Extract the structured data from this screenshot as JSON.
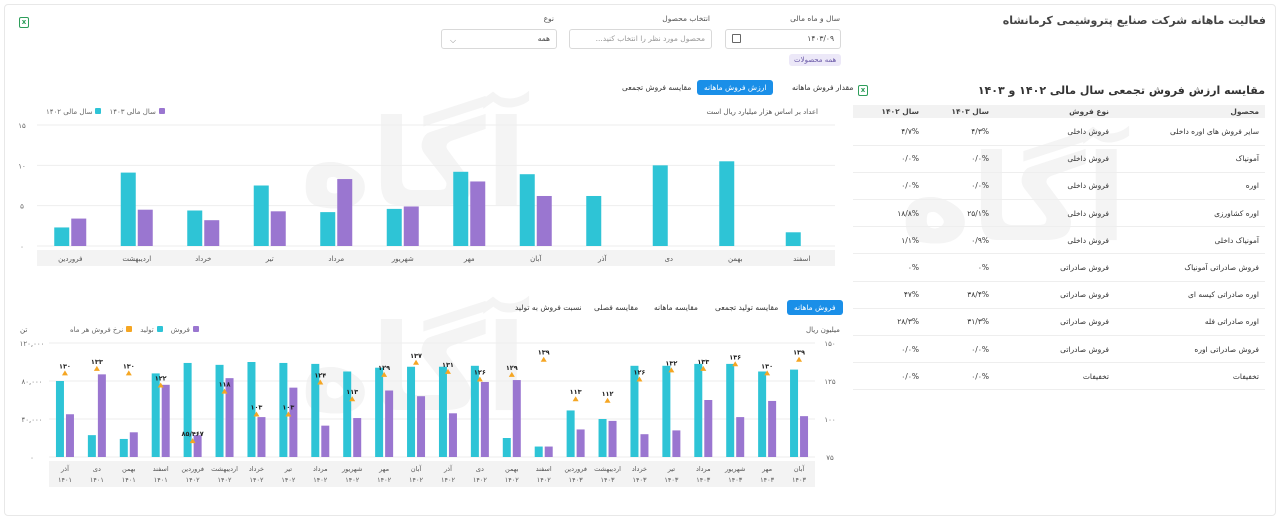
{
  "page_title": "فعالیت ماهانه شرکت صنایع پتروشیمی کرمانشاه",
  "export_icon": "excel-export-icon",
  "watermark_text": "آگاه",
  "filters": {
    "period_label": "سال و ماه مالی",
    "period_value": "۱۴۰۳/۰۹",
    "product_label": "انتخاب محصول",
    "product_placeholder": "محصول مورد نظر را انتخاب کنید...",
    "type_label": "نوع",
    "type_value": "همه",
    "all_products_tag": "همه محصولات"
  },
  "top_tabs": [
    "مقدار فروش ماهانه",
    "ارزش فروش ماهانه",
    "مقایسه فروش تجمعی"
  ],
  "top_tab_active": 1,
  "bottom_tabs": [
    "فروش ماهانه",
    "مقایسه تولید تجمعی",
    "مقایسه ماهانه",
    "مقایسه فصلی",
    "نسبت فروش به تولید"
  ],
  "bottom_tab_active": 0,
  "table_section": {
    "title": "مقایسه ارزش فروش تجمعی سال مالی ۱۴۰۲ و ۱۴۰۳",
    "headers": [
      "محصول",
      "نوع فروش",
      "سال ۱۴۰۳",
      "سال ۱۴۰۲"
    ],
    "rows": [
      [
        "سایر فروش های اوره داخلی",
        "فروش داخلی",
        "۴/۳%",
        "۴/۷%"
      ],
      [
        "آمونیاک",
        "فروش داخلی",
        "۰/۰%",
        "۰/۰%"
      ],
      [
        "اوره",
        "فروش داخلی",
        "۰/۰%",
        "۰/۰%"
      ],
      [
        "اوره کشاورزی",
        "فروش داخلی",
        "۲۵/۱%",
        "۱۸/۸%"
      ],
      [
        "آمونیاک داخلی",
        "فروش داخلی",
        "۰/۹%",
        "۱/۱%"
      ],
      [
        "فروش صادراتی آمونیاک",
        "فروش صادراتی",
        "۰%",
        "۰%"
      ],
      [
        "اوره صادراتی کیسه ای",
        "فروش صادراتی",
        "۳۸/۴%",
        "۴۷%"
      ],
      [
        "اوره صادراتی فله",
        "فروش صادراتی",
        "۳۱/۳%",
        "۲۸/۳%"
      ],
      [
        "فروش صادراتی اوره",
        "فروش صادراتی",
        "۰/۰%",
        "۰/۰%"
      ],
      [
        "تخفیفات",
        "تخفیفات",
        "۰/۰%",
        "۰/۰%"
      ]
    ]
  },
  "chart_top_note": "اعداد بر اساس هزار میلیارد ریال است",
  "colors": {
    "teal": "#2ec4d6",
    "purple": "#9a76d0",
    "orange": "#f5a623",
    "accent": "#1a8fe8"
  },
  "chart_data": [
    {
      "type": "bar",
      "legend": [
        {
          "name": "سال مالی ۱۴۰۳",
          "color": "#9a76d0"
        },
        {
          "name": "سال مالی ۱۴۰۲",
          "color": "#2ec4d6"
        }
      ],
      "categories": [
        "اسفند",
        "بهمن",
        "دی",
        "آذر",
        "آبان",
        "مهر",
        "شهریور",
        "مرداد",
        "تیر",
        "خرداد",
        "اردیبهشت",
        "فروردین"
      ],
      "series": [
        {
          "name": "سال مالی ۱۴۰۲",
          "values": [
            1.7,
            10.5,
            10,
            6.2,
            8.9,
            9.2,
            4.6,
            4.2,
            7.5,
            4.4,
            9.1,
            2.3
          ]
        },
        {
          "name": "سال مالی ۱۴۰۳",
          "values": [
            null,
            null,
            null,
            null,
            6.2,
            8,
            4.9,
            8.3,
            4.3,
            3.2,
            4.5,
            3.4
          ]
        }
      ],
      "y_ticks": [
        "۰",
        "۵",
        "۱۰",
        "۱۵"
      ],
      "ylim": [
        0,
        15
      ]
    },
    {
      "type": "bar",
      "legend": [
        {
          "name": "فروش",
          "color": "#9a76d0"
        },
        {
          "name": "تولید",
          "color": "#2ec4d6"
        },
        {
          "name": "نرخ فروش هر ماه",
          "color": "#f5a623"
        }
      ],
      "left_unit": "تن",
      "right_unit": "میلیون ریال",
      "left_ticks": [
        "۰",
        "۴۰,۰۰۰",
        "۸۰,۰۰۰",
        "۱۲۰,۰۰۰"
      ],
      "right_ticks": [
        "۷۵",
        "۱۰۰",
        "۱۲۵",
        "۱۵۰"
      ],
      "categories": [
        [
          "آذر",
          "۱۴۰۱"
        ],
        [
          "دی",
          "۱۴۰۱"
        ],
        [
          "بهمن",
          "۱۴۰۱"
        ],
        [
          "اسفند",
          "۱۴۰۱"
        ],
        [
          "فروردین",
          "۱۴۰۲"
        ],
        [
          "اردیبهشت",
          "۱۴۰۲"
        ],
        [
          "خرداد",
          "۱۴۰۲"
        ],
        [
          "تیر",
          "۱۴۰۲"
        ],
        [
          "مرداد",
          "۱۴۰۲"
        ],
        [
          "شهریور",
          "۱۴۰۲"
        ],
        [
          "مهر",
          "۱۴۰۲"
        ],
        [
          "آبان",
          "۱۴۰۲"
        ],
        [
          "آذر",
          "۱۴۰۲"
        ],
        [
          "دی",
          "۱۴۰۲"
        ],
        [
          "بهمن",
          "۱۴۰۲"
        ],
        [
          "اسفند",
          "۱۴۰۲"
        ],
        [
          "فروردین",
          "۱۴۰۳"
        ],
        [
          "اردیبهشت",
          "۱۴۰۳"
        ],
        [
          "خرداد",
          "۱۴۰۳"
        ],
        [
          "تیر",
          "۱۴۰۳"
        ],
        [
          "مرداد",
          "۱۴۰۳"
        ],
        [
          "شهریور",
          "۱۴۰۳"
        ],
        [
          "مهر",
          "۱۴۰۳"
        ],
        [
          "آبان",
          "۱۴۰۳"
        ]
      ],
      "production": [
        80000,
        23000,
        19000,
        88000,
        99000,
        97000,
        100000,
        99000,
        98000,
        90000,
        94000,
        95000,
        95000,
        96000,
        20000,
        11000,
        49000,
        40000,
        96000,
        96000,
        98000,
        98000,
        90000,
        92000
      ],
      "sales": [
        45000,
        87000,
        26000,
        76000,
        23000,
        83000,
        42000,
        73000,
        33000,
        41000,
        70000,
        64000,
        46000,
        79000,
        81000,
        11000,
        29000,
        38000,
        24000,
        28000,
        60000,
        42000,
        59000,
        43000
      ],
      "rate_labels": [
        "۱۳۰",
        "۱۳۳",
        "۱۳۰",
        "۱۲۲",
        "۸۵/۴۶۷",
        "۱۱۸",
        "۱۰۳",
        "۱۰۳",
        "۱۲۴",
        "۱۱۳",
        "۱۲۹",
        "۱۳۷",
        "۱۳۱",
        "۱۲۶",
        "۱۲۹",
        "۱۳۹",
        "۱۱۳",
        "۱۱۲",
        "۱۲۶",
        "۱۳۲",
        "۱۳۳",
        "۱۳۶",
        "۱۳۰",
        "۱۳۹"
      ],
      "rate_values": [
        130,
        133,
        130,
        122,
        85.467,
        118,
        103,
        103,
        124,
        113,
        129,
        137,
        131,
        126,
        129,
        139,
        113,
        112,
        126,
        132,
        133,
        136,
        130,
        139
      ],
      "left_ylim": [
        0,
        120000
      ],
      "right_ylim": [
        75,
        150
      ]
    }
  ]
}
